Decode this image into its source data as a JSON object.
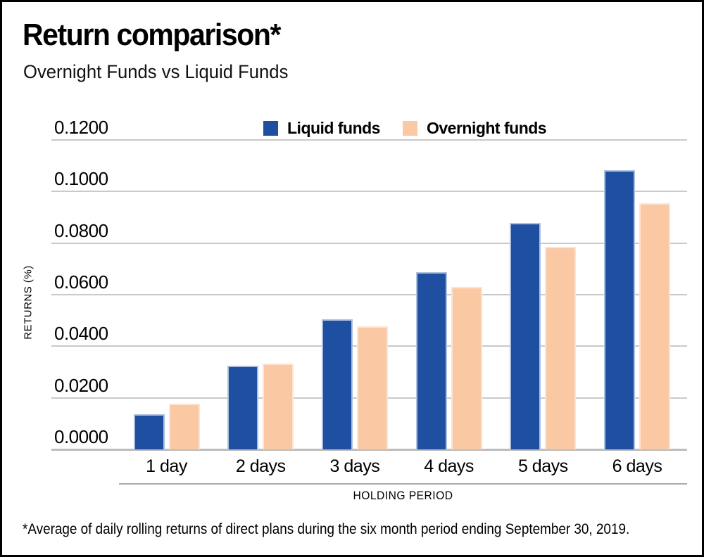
{
  "header": {
    "title": "Return comparison*",
    "subtitle": "Overnight Funds vs Liquid Funds"
  },
  "legend": [
    {
      "label": "Liquid funds",
      "color": "#1F4FA0",
      "border_color": "#AEC0DE"
    },
    {
      "label": "Overnight funds",
      "color": "#FBC8A4",
      "border_color": "#FDE4D0"
    }
  ],
  "chart_data": {
    "type": "bar",
    "categories": [
      "1 day",
      "2 days",
      "3 days",
      "4 days",
      "5 days",
      "6 days"
    ],
    "series": [
      {
        "name": "Liquid funds",
        "color": "#1F4FA0",
        "border_color": "#AEC0DE",
        "values": [
          0.0137,
          0.0325,
          0.0504,
          0.0688,
          0.0877,
          0.1084
        ]
      },
      {
        "name": "Overnight funds",
        "color": "#FBC8A4",
        "border_color": "#FDE4D0",
        "values": [
          0.0177,
          0.0332,
          0.0477,
          0.0631,
          0.0786,
          0.0954
        ]
      }
    ],
    "title": "Return comparison*",
    "subtitle": "Overnight Funds vs Liquid Funds",
    "xlabel": "HOLDING PERIOD",
    "ylabel": "RETURNS (%)",
    "ylim": [
      0,
      0.12
    ],
    "ytick_step": 0.02,
    "ytick_labels": [
      "0.0000",
      "0.0200",
      "0.0400",
      "0.0600",
      "0.0800",
      "0.1000",
      "0.1200"
    ],
    "grid": true,
    "gridline_color": "#c9c9c9",
    "legend_position": "top"
  },
  "footnote": "*Average of daily rolling returns of direct plans during the six month period ending September 30, 2019."
}
